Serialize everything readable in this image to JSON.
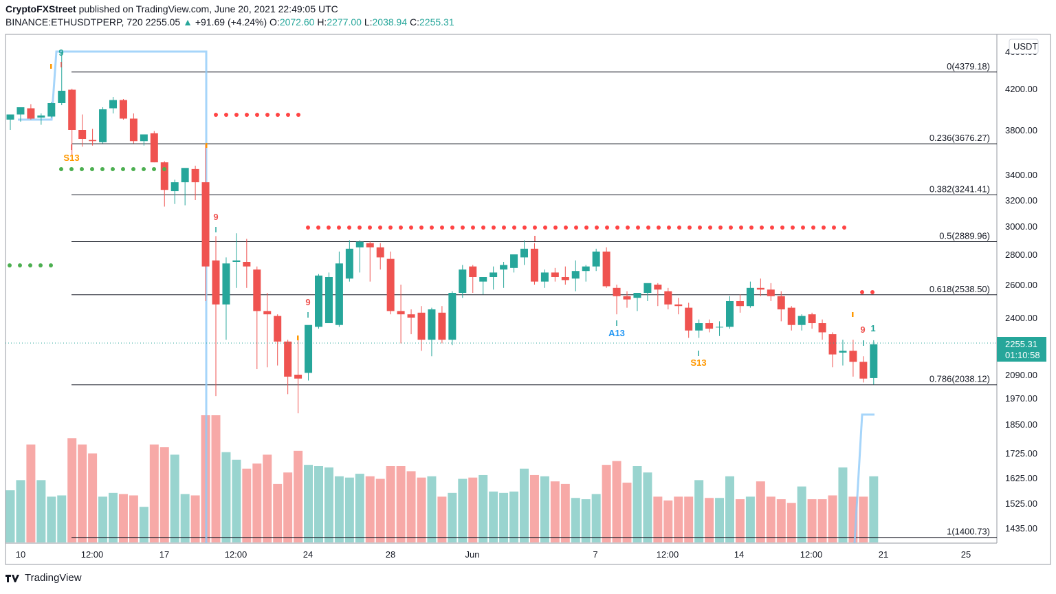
{
  "header": {
    "publisher": "CryptoFXStreet",
    "published_text": "published on TradingView.com, June 20, 2021 22:49:05 UTC",
    "symbol": "BINANCE:ETHUSDTPERP, 720",
    "last": "2255.05",
    "arrow": "▲",
    "change": "+91.69 (+4.24%)",
    "o_label": "O:",
    "o": "2072.60",
    "h_label": "H:",
    "h": "2277.00",
    "l_label": "L:",
    "l": "2038.94",
    "c_label": "C:",
    "c": "2255.31"
  },
  "brand": {
    "name": "TradingView"
  },
  "colors": {
    "up": "#26a69a",
    "down": "#ef5350",
    "vol_up": "#99d4cf",
    "vol_down": "#f7a9a7",
    "fib": "#131722",
    "td_line": "#90caf9",
    "dot_red": "#ff4444",
    "dot_green": "#4caf50",
    "td_orange": "#ff9800",
    "td_blue": "#2196f3"
  },
  "chart_data": {
    "type": "candlestick",
    "currency": "USDT",
    "ylim": [
      1360,
      4560
    ],
    "y_ticks": [
      "4600.00",
      "4200.00",
      "3800.00",
      "3400.00",
      "3200.00",
      "3000.00",
      "2800.00",
      "2600.00",
      "2400.00",
      "2090.00",
      "1970.00",
      "1850.00",
      "1725.00",
      "1625.00",
      "1525.00",
      "1435.00"
    ],
    "x_ticks": [
      "10",
      "12:00",
      "17",
      "12:00",
      "24",
      "28",
      "Jun",
      "7",
      "12:00",
      "14",
      "12:00",
      "21",
      "25"
    ],
    "last_price_label": "2255.31",
    "countdown_label": "01:10:58",
    "fib_levels": [
      {
        "label": "0(4379.18)",
        "value": 4379.18
      },
      {
        "label": "0.236(3676.27)",
        "value": 3676.27
      },
      {
        "label": "0.382(3241.41)",
        "value": 3241.41
      },
      {
        "label": "0.5(2889.96)",
        "value": 2889.96
      },
      {
        "label": "0.618(2538.50)",
        "value": 2538.5
      },
      {
        "label": "0.786(2038.12)",
        "value": 2038.12
      },
      {
        "label": "1(1400.73)",
        "value": 1400.73
      }
    ],
    "candles": [
      [
        3900,
        3950,
        3800,
        3950
      ],
      [
        3950,
        4000,
        3880,
        4020
      ],
      [
        4010,
        4050,
        3900,
        3910
      ],
      [
        3920,
        3960,
        3850,
        3940
      ],
      [
        3930,
        4070,
        3920,
        4060
      ],
      [
        4060,
        4600,
        4040,
        4180
      ],
      [
        4190,
        4200,
        3550,
        3800
      ],
      [
        3800,
        3950,
        3650,
        3720
      ],
      [
        3710,
        3810,
        3660,
        3700
      ],
      [
        3690,
        4020,
        3680,
        4000
      ],
      [
        4010,
        4120,
        3960,
        4090
      ],
      [
        4090,
        4100,
        3900,
        3910
      ],
      [
        3910,
        3960,
        3680,
        3700
      ],
      [
        3700,
        3760,
        3660,
        3760
      ],
      [
        3770,
        3790,
        3510,
        3510
      ],
      [
        3510,
        3520,
        3150,
        3280
      ],
      [
        3270,
        3360,
        3170,
        3340
      ],
      [
        3340,
        3450,
        3160,
        3460
      ],
      [
        3450,
        3480,
        3200,
        3340
      ],
      [
        3340,
        3670,
        2500,
        2720
      ],
      [
        2760,
        2930,
        1980,
        2480
      ],
      [
        2480,
        2780,
        2280,
        2740
      ],
      [
        2750,
        2950,
        2580,
        2760
      ],
      [
        2750,
        2910,
        2580,
        2720
      ],
      [
        2700,
        2720,
        2120,
        2440
      ],
      [
        2440,
        2550,
        2130,
        2420
      ],
      [
        2410,
        2420,
        2140,
        2270
      ],
      [
        2270,
        2280,
        1990,
        2080
      ],
      [
        2090,
        2300,
        1900,
        2070
      ],
      [
        2100,
        2350,
        2060,
        2360
      ],
      [
        2350,
        2670,
        2340,
        2660
      ],
      [
        2370,
        2680,
        2380,
        2650
      ],
      [
        2360,
        2820,
        2350,
        2740
      ],
      [
        2640,
        2900,
        2620,
        2840
      ],
      [
        2850,
        2900,
        2680,
        2890
      ],
      [
        2880,
        2890,
        2620,
        2850
      ],
      [
        2850,
        2880,
        2700,
        2780
      ],
      [
        2770,
        2820,
        2420,
        2440
      ],
      [
        2440,
        2600,
        2260,
        2420
      ],
      [
        2420,
        2450,
        2310,
        2400
      ],
      [
        2430,
        2470,
        2220,
        2280
      ],
      [
        2280,
        2460,
        2190,
        2450
      ],
      [
        2430,
        2470,
        2260,
        2280
      ],
      [
        2280,
        2560,
        2250,
        2550
      ],
      [
        2550,
        2730,
        2520,
        2700
      ],
      [
        2720,
        2730,
        2550,
        2650
      ],
      [
        2620,
        2650,
        2540,
        2650
      ],
      [
        2650,
        2720,
        2570,
        2680
      ],
      [
        2700,
        2750,
        2580,
        2730
      ],
      [
        2710,
        2800,
        2680,
        2800
      ],
      [
        2780,
        2900,
        2730,
        2840
      ],
      [
        2840,
        2880,
        2600,
        2620
      ],
      [
        2620,
        2700,
        2580,
        2680
      ],
      [
        2680,
        2710,
        2620,
        2650
      ],
      [
        2650,
        2720,
        2600,
        2630
      ],
      [
        2640,
        2760,
        2560,
        2690
      ],
      [
        2690,
        2730,
        2620,
        2720
      ],
      [
        2720,
        2840,
        2690,
        2820
      ],
      [
        2820,
        2850,
        2580,
        2590
      ],
      [
        2580,
        2600,
        2420,
        2530
      ],
      [
        2530,
        2560,
        2460,
        2510
      ],
      [
        2520,
        2540,
        2440,
        2550
      ],
      [
        2550,
        2600,
        2500,
        2610
      ],
      [
        2600,
        2610,
        2470,
        2570
      ],
      [
        2560,
        2580,
        2450,
        2480
      ],
      [
        2480,
        2520,
        2420,
        2470
      ],
      [
        2460,
        2490,
        2290,
        2330
      ],
      [
        2330,
        2390,
        2290,
        2370
      ],
      [
        2370,
        2390,
        2320,
        2340
      ],
      [
        2350,
        2380,
        2300,
        2350
      ],
      [
        2350,
        2530,
        2340,
        2500
      ],
      [
        2500,
        2540,
        2430,
        2470
      ],
      [
        2470,
        2620,
        2460,
        2580
      ],
      [
        2580,
        2640,
        2530,
        2570
      ],
      [
        2570,
        2610,
        2500,
        2530
      ],
      [
        2530,
        2560,
        2380,
        2450
      ],
      [
        2460,
        2470,
        2330,
        2360
      ],
      [
        2360,
        2420,
        2330,
        2410
      ],
      [
        2420,
        2430,
        2340,
        2370
      ],
      [
        2370,
        2390,
        2280,
        2320
      ],
      [
        2310,
        2320,
        2130,
        2200
      ],
      [
        2210,
        2280,
        2140,
        2220
      ],
      [
        2220,
        2280,
        2080,
        2160
      ],
      [
        2160,
        2190,
        2050,
        2070
      ],
      [
        2072.6,
        2277,
        2038.94,
        2255.31
      ]
    ],
    "volume_heights": [
      0.41,
      0.49,
      0.77,
      0.49,
      0.36,
      0.37,
      0.82,
      0.77,
      0.7,
      0.36,
      0.39,
      0.38,
      0.37,
      0.28,
      0.77,
      0.75,
      0.69,
      0.38,
      0.37,
      1.0,
      1.0,
      0.71,
      0.65,
      0.58,
      0.62,
      0.69,
      0.46,
      0.55,
      0.72,
      0.61,
      0.6,
      0.59,
      0.52,
      0.51,
      0.54,
      0.52,
      0.5,
      0.6,
      0.6,
      0.56,
      0.51,
      0.52,
      0.36,
      0.39,
      0.5,
      0.51,
      0.53,
      0.4,
      0.39,
      0.4,
      0.58,
      0.53,
      0.52,
      0.48,
      0.46,
      0.35,
      0.34,
      0.38,
      0.61,
      0.64,
      0.47,
      0.6,
      0.55,
      0.36,
      0.33,
      0.36,
      0.36,
      0.49,
      0.35,
      0.35,
      0.52,
      0.34,
      0.36,
      0.48,
      0.36,
      0.34,
      0.31,
      0.44,
      0.34,
      0.34,
      0.37,
      0.59,
      0.36,
      0.36,
      0.52
    ],
    "annotations": [
      {
        "text": "9",
        "color": "#26a69a"
      },
      {
        "text": "S13",
        "color": "#ff9800"
      },
      {
        "text": "9",
        "color": "#ef5350"
      },
      {
        "text": "9",
        "color": "#ef5350"
      },
      {
        "text": "A13",
        "color": "#2196f3"
      },
      {
        "text": "S13",
        "color": "#ff9800"
      },
      {
        "text": "9",
        "color": "#ef5350"
      },
      {
        "text": "1",
        "color": "#26a69a"
      }
    ]
  }
}
